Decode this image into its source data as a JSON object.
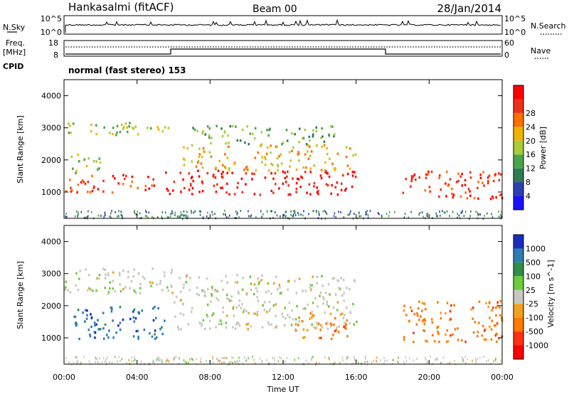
{
  "header": {
    "station": "Hankasalmi (fitACF)",
    "beam": "Beam 00",
    "date": "28/Jan/2014",
    "cpid_text": "normal (fast stereo) 153"
  },
  "nsky_panel": {
    "label": "N.Sky",
    "right_label": "N.Search",
    "ticks_left": [
      "10^5",
      "10^0"
    ],
    "ticks_right": [
      "10^5",
      "10^0"
    ]
  },
  "freq_panel": {
    "label_line1": "Freq.",
    "label_line2": "[MHz]",
    "ticks_left": [
      "18",
      "8"
    ],
    "right_label": "Nave",
    "ticks_right": [
      "60",
      "0"
    ],
    "cpid_label": "CPID"
  },
  "axes": {
    "x_ticks": [
      "00:00",
      "04:00",
      "08:00",
      "12:00",
      "16:00",
      "20:00",
      "00:00"
    ],
    "xlabel": "Time UT",
    "ylabel": "Slant Range [km]",
    "y_ticks": [
      "1000",
      "2000",
      "3000",
      "4000"
    ]
  },
  "power_scale": {
    "label": "Power [dB]",
    "ticks": [
      "4",
      "8",
      "12",
      "16",
      "20",
      "24",
      "28"
    ],
    "colors": [
      "#1a10ff",
      "#2b3fb0",
      "#2e7d52",
      "#4aa54a",
      "#a8cc3a",
      "#f0b400",
      "#ff7000",
      "#f03018",
      "#ff0000"
    ]
  },
  "velocity_scale": {
    "label": "Velocity [m s^-1]",
    "ticks": [
      "1000",
      "500",
      "100",
      "25",
      "-25",
      "-100",
      "-500",
      "-1000"
    ],
    "colors": [
      "#1a2cc0",
      "#2b7fb0",
      "#2f8f4a",
      "#6ccc3a",
      "#c8c8c0",
      "#f2a020",
      "#ff7a00",
      "#ff3010",
      "#ff0000"
    ]
  },
  "chart_data": {
    "type": "heatmap",
    "x_unit": "hours UT",
    "x_range": [
      0,
      24
    ],
    "y_range_km": [
      180,
      4500
    ],
    "power_features": [
      {
        "t0": 0.0,
        "t1": 5.0,
        "r0": 1000,
        "r1": 1600,
        "level": 7
      },
      {
        "t0": 0.3,
        "t1": 2.0,
        "r0": 1600,
        "r1": 2200,
        "level": 4
      },
      {
        "t0": 0.0,
        "t1": 6.0,
        "r0": 2800,
        "r1": 3200,
        "level": 4
      },
      {
        "t0": 5.5,
        "t1": 16.2,
        "r0": 950,
        "r1": 1700,
        "level": 8
      },
      {
        "t0": 6.5,
        "t1": 16.0,
        "r0": 1700,
        "r1": 2500,
        "level": 5
      },
      {
        "t0": 7.0,
        "t1": 15.0,
        "r0": 2500,
        "r1": 3100,
        "level": 3
      },
      {
        "t0": 18.5,
        "t1": 24.0,
        "r0": 800,
        "r1": 1700,
        "level": 7
      }
    ],
    "velocity_features": [
      {
        "t0": 0.0,
        "t1": 6.0,
        "r0": 2400,
        "r1": 3200,
        "value": 0
      },
      {
        "t0": 0.5,
        "t1": 5.5,
        "r0": 1000,
        "r1": 2000,
        "value": 300
      },
      {
        "t0": 6.0,
        "t1": 16.0,
        "r0": 1300,
        "r1": 3000,
        "value": 0
      },
      {
        "t0": 12.5,
        "t1": 15.5,
        "r0": 1000,
        "r1": 1800,
        "value": -400
      },
      {
        "t0": 18.5,
        "t1": 24.0,
        "r0": 900,
        "r1": 2200,
        "value": -300
      }
    ]
  }
}
